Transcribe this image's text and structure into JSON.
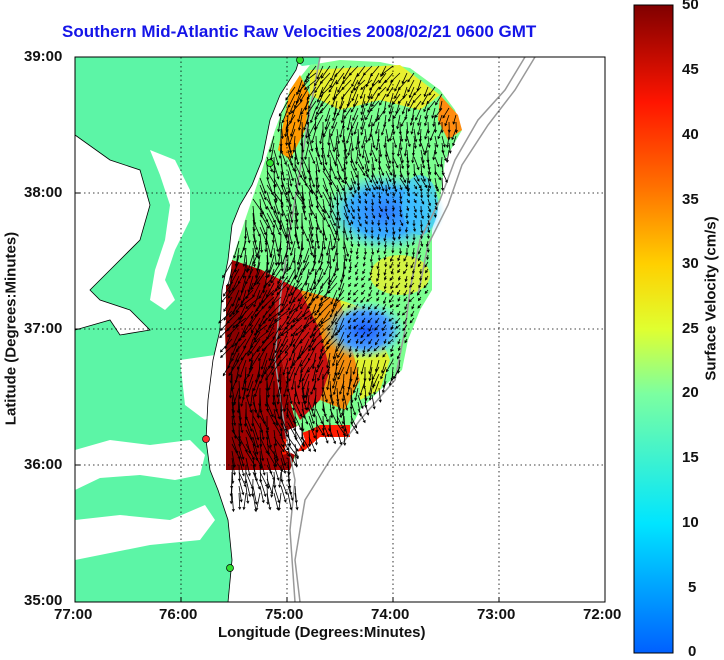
{
  "title": "Southern Mid-Atlantic Raw Velocities 2008/02/21 0600 GMT",
  "xlabel": "Longitude (Degrees:Minutes)",
  "ylabel": "Latitude (Degrees:Minutes)",
  "colorbar_label": "Surface Velocity (cm/s)",
  "x_ticks": [
    "77:00",
    "76:00",
    "75:00",
    "74:00",
    "73:00",
    "72:00"
  ],
  "y_ticks": [
    "39:00",
    "38:00",
    "37:00",
    "36:00",
    "35:00"
  ],
  "colorbar_ticks": [
    "50",
    "45",
    "40",
    "35",
    "30",
    "25",
    "20",
    "15",
    "10",
    "5",
    "0"
  ],
  "colors": {
    "land": "#5cf5a6",
    "title": "#1515e8",
    "grid": "#000000"
  },
  "chart_data": {
    "type": "heatmap",
    "title": "Southern Mid-Atlantic Raw Velocities 2008/02/21 0600 GMT",
    "xlabel": "Longitude (Degrees:Minutes)",
    "ylabel": "Latitude (Degrees:Minutes)",
    "xlim": [
      -77,
      -72
    ],
    "ylim": [
      35,
      39
    ],
    "colorbar": {
      "label": "Surface Velocity (cm/s)",
      "range": [
        0,
        50
      ]
    },
    "grid": true,
    "regions": [
      {
        "name": "",
        "lon_range": [
          -75.6,
          -75.0
        ],
        "lat_range": [
          36.0,
          37.3
        ],
        "velocity": 48
      },
      {
        "name": "",
        "lon_range": [
          -74.7,
          -73.6
        ],
        "lat_range": [
          37.4,
          38.3
        ],
        "velocity": 10
      },
      {
        "name": "",
        "lon_range": [
          -74.5,
          -73.9
        ],
        "lat_range": [
          36.8,
          37.3
        ],
        "velocity": 8
      },
      {
        "name": "",
        "lon_range": [
          -75.0,
          -74.3
        ],
        "lat_range": [
          38.5,
          38.9
        ],
        "velocity": 33
      }
    ]
  }
}
